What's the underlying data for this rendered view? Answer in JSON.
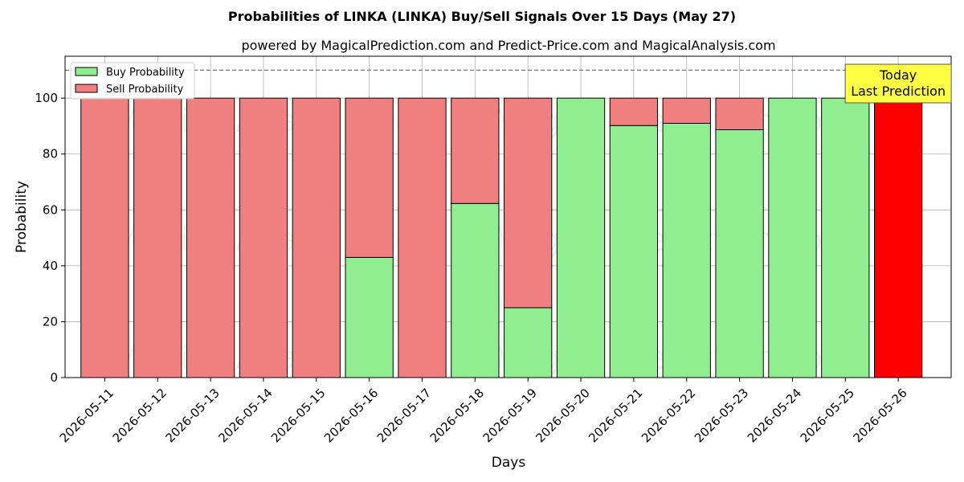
{
  "chart_data": {
    "type": "bar",
    "stacked": true,
    "title": "Probabilities of LINKA (LINKA) Buy/Sell Signals Over 15 Days (May 27)",
    "subtitle": "powered by MagicalPrediction.com and Predict-Price.com and MagicalAnalysis.com",
    "xlabel": "Days",
    "ylabel": "Probability",
    "ylim": [
      0,
      115
    ],
    "yticks": [
      0,
      20,
      40,
      60,
      80,
      100
    ],
    "reference_line": 110,
    "grid": true,
    "legend_position": "top-left",
    "categories": [
      "2026-05-11",
      "2026-05-12",
      "2026-05-13",
      "2026-05-14",
      "2026-05-15",
      "2026-05-16",
      "2026-05-17",
      "2026-05-18",
      "2026-05-19",
      "2026-05-20",
      "2026-05-21",
      "2026-05-22",
      "2026-05-23",
      "2026-05-24",
      "2026-05-25",
      "2026-05-26"
    ],
    "series": [
      {
        "name": "Buy Probability",
        "color": "#90ee90",
        "values": [
          0,
          0,
          0,
          0,
          0,
          43,
          0,
          62.3,
          25,
          100,
          90.2,
          91,
          88.7,
          100,
          100,
          0
        ]
      },
      {
        "name": "Sell Probability",
        "color": "#f08080",
        "values": [
          100,
          100,
          100,
          100,
          100,
          57,
          100,
          37.7,
          75,
          0,
          9.8,
          9,
          11.3,
          0,
          0,
          100
        ]
      }
    ],
    "highlight": {
      "category": "2026-05-26",
      "color": "#ff0000"
    },
    "annotation": {
      "lines": [
        "Today",
        "Last Prediction"
      ],
      "category": "2026-05-26",
      "color": "#ffff44"
    },
    "watermarks": [
      "MagicalAnalysis.com",
      "MagicalPrediction.com"
    ]
  }
}
